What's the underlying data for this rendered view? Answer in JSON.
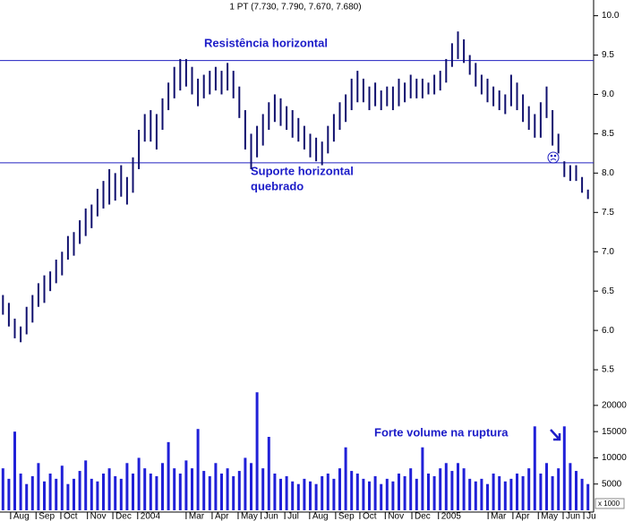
{
  "chart_data": {
    "type": "stock",
    "title": "1 PT (7.730, 7.790, 7.670, 7.680)",
    "annotations": [
      "Resistência horizontal",
      "Suporte horizontal",
      "quebrado",
      "Forte volume na ruptura"
    ],
    "volume_unit": "x 1000",
    "x": [
      0,
      1,
      2,
      3,
      4,
      5,
      6,
      7,
      8,
      9,
      10,
      11,
      12,
      13,
      14,
      15,
      16,
      17,
      18,
      19,
      20,
      21,
      22,
      23,
      24,
      25,
      26,
      27,
      28,
      29,
      30,
      31,
      32,
      33,
      34,
      35,
      36,
      37,
      38,
      39,
      40,
      41,
      42,
      43,
      44,
      45,
      46,
      47,
      48,
      49,
      50,
      51,
      52,
      53,
      54,
      55,
      56,
      57,
      58,
      59,
      60,
      61,
      62,
      63,
      64,
      65,
      66,
      67,
      68,
      69,
      70,
      71,
      72,
      73,
      74,
      75,
      76,
      77,
      78,
      79,
      80,
      81,
      82,
      83,
      84,
      85,
      86,
      87,
      88,
      89,
      90,
      91,
      92,
      93,
      94,
      95,
      96,
      97,
      98,
      99
    ],
    "high": [
      6.45,
      6.35,
      6.15,
      6.05,
      6.3,
      6.45,
      6.6,
      6.7,
      6.75,
      6.9,
      7.0,
      7.2,
      7.25,
      7.4,
      7.55,
      7.6,
      7.8,
      7.9,
      8.05,
      8.0,
      8.1,
      7.95,
      8.2,
      8.55,
      8.75,
      8.8,
      8.75,
      8.95,
      9.15,
      9.35,
      9.45,
      9.45,
      9.35,
      9.2,
      9.25,
      9.3,
      9.35,
      9.3,
      9.4,
      9.3,
      9.1,
      8.8,
      8.5,
      8.6,
      8.75,
      8.9,
      9.0,
      8.95,
      8.85,
      8.8,
      8.7,
      8.6,
      8.5,
      8.45,
      8.4,
      8.6,
      8.75,
      8.9,
      9.0,
      9.2,
      9.3,
      9.2,
      9.1,
      9.15,
      9.05,
      9.1,
      9.1,
      9.2,
      9.15,
      9.25,
      9.2,
      9.2,
      9.15,
      9.25,
      9.3,
      9.45,
      9.65,
      9.8,
      9.7,
      9.5,
      9.4,
      9.25,
      9.2,
      9.1,
      9.05,
      9.0,
      9.25,
      9.15,
      9.0,
      8.85,
      8.75,
      8.9,
      9.1,
      8.8,
      8.5,
      8.15,
      8.1,
      8.1,
      7.95,
      7.79
    ],
    "low": [
      6.2,
      6.05,
      5.9,
      5.85,
      5.95,
      6.1,
      6.3,
      6.35,
      6.5,
      6.6,
      6.7,
      6.9,
      6.95,
      7.1,
      7.2,
      7.3,
      7.45,
      7.55,
      7.6,
      7.65,
      7.7,
      7.6,
      7.75,
      8.05,
      8.4,
      8.4,
      8.3,
      8.55,
      8.8,
      8.95,
      9.05,
      9.1,
      9.0,
      8.85,
      8.95,
      9.0,
      9.05,
      9.0,
      9.05,
      8.95,
      8.7,
      8.3,
      8.05,
      8.2,
      8.35,
      8.55,
      8.65,
      8.6,
      8.55,
      8.45,
      8.4,
      8.3,
      8.2,
      8.15,
      8.1,
      8.25,
      8.4,
      8.55,
      8.65,
      8.8,
      8.9,
      8.9,
      8.8,
      8.85,
      8.8,
      8.85,
      8.8,
      8.85,
      8.9,
      8.95,
      8.95,
      8.95,
      9.0,
      9.0,
      9.05,
      9.15,
      9.35,
      9.45,
      9.4,
      9.25,
      9.1,
      9.0,
      8.9,
      8.85,
      8.8,
      8.75,
      8.85,
      8.8,
      8.65,
      8.55,
      8.45,
      8.45,
      8.7,
      8.35,
      8.25,
      7.95,
      7.9,
      7.9,
      7.75,
      7.67
    ],
    "volume": [
      8000,
      6000,
      15000,
      7000,
      5000,
      6500,
      9000,
      5500,
      7000,
      6000,
      8500,
      5000,
      6000,
      7500,
      9500,
      6000,
      5500,
      7000,
      8000,
      6500,
      6000,
      9000,
      7000,
      10000,
      8000,
      7000,
      6500,
      9000,
      13000,
      8000,
      7000,
      9500,
      8000,
      15500,
      7500,
      6500,
      9000,
      7000,
      8000,
      6500,
      7500,
      10000,
      9000,
      22500,
      8000,
      14000,
      7000,
      6000,
      6500,
      5500,
      5000,
      6000,
      5500,
      5000,
      6500,
      7000,
      6000,
      8000,
      12000,
      7500,
      7000,
      6000,
      5500,
      6500,
      5000,
      6000,
      5500,
      7000,
      6500,
      8000,
      6000,
      12000,
      7000,
      6500,
      8000,
      9000,
      7500,
      9000,
      8000,
      6000,
      5500,
      6000,
      5000,
      7000,
      6500,
      5500,
      6000,
      7000,
      6500,
      8000,
      16000,
      7000,
      9000,
      6500,
      8000,
      16000,
      9000,
      7500,
      6000,
      5000
    ],
    "levels": [
      9.43,
      8.13
    ],
    "xlim": [
      -0.5,
      99.5
    ],
    "xticks": [
      {
        "value": 1.3,
        "label": "Aug"
      },
      {
        "value": 5.6,
        "label": "Sep"
      },
      {
        "value": 9.8,
        "label": "Oct"
      },
      {
        "value": 14.3,
        "label": "Nov"
      },
      {
        "value": 18.6,
        "label": "Dec"
      },
      {
        "value": 22.8,
        "label": "2004"
      },
      {
        "value": 31.0,
        "label": "Mar"
      },
      {
        "value": 35.4,
        "label": "Apr"
      },
      {
        "value": 39.8,
        "label": "May"
      },
      {
        "value": 43.7,
        "label": "Jun"
      },
      {
        "value": 47.7,
        "label": "Jul"
      },
      {
        "value": 51.9,
        "label": "Aug"
      },
      {
        "value": 56.3,
        "label": "Sep"
      },
      {
        "value": 60.4,
        "label": "Oct"
      },
      {
        "value": 64.7,
        "label": "Nov"
      },
      {
        "value": 69.2,
        "label": "Dec"
      },
      {
        "value": 73.7,
        "label": "2005"
      },
      {
        "value": 82.1,
        "label": "Mar"
      },
      {
        "value": 86.3,
        "label": "Apr"
      },
      {
        "value": 90.6,
        "label": "May"
      },
      {
        "value": 94.8,
        "label": "Jun"
      },
      {
        "value": 98.3,
        "label": "Ju"
      }
    ],
    "ylim": [
      5.0,
      10.2
    ],
    "yticks": [
      5.5,
      {
        "value": 6,
        "label": "6.0"
      },
      6.5,
      {
        "value": 7,
        "label": "7.0"
      },
      7.5,
      {
        "value": 8,
        "label": "8.0"
      },
      8.5,
      {
        "value": 9,
        "label": "9.0"
      },
      9.5,
      {
        "value": 10,
        "label": "10.0"
      }
    ],
    "y2lim": [
      0,
      21000
    ],
    "y2ticks": [
      5000,
      10000,
      15000,
      20000
    ],
    "price_color": "#10106e",
    "volume_color": "#2020d8",
    "level_color": "#2020c0"
  }
}
